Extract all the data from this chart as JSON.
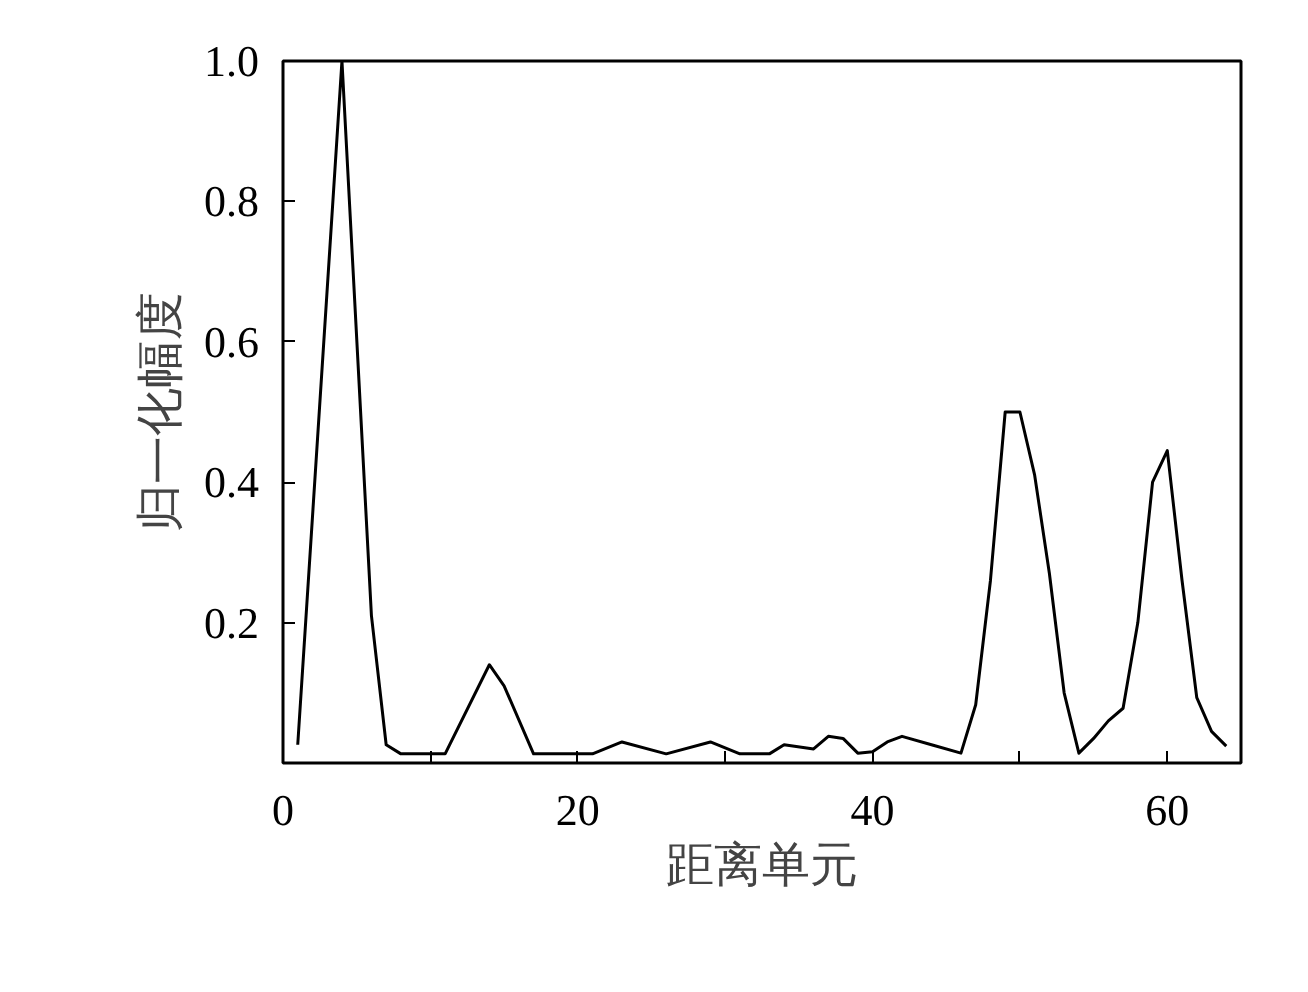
{
  "chart_data": {
    "type": "line",
    "xlabel": "距离单元",
    "ylabel": "归一化幅度",
    "x": [
      1,
      4,
      6,
      7,
      8,
      11,
      14,
      15,
      17,
      21,
      23,
      26,
      29,
      31,
      33,
      34,
      36,
      37,
      38,
      39,
      40,
      41,
      42,
      44,
      46,
      47,
      48,
      49,
      50,
      51,
      52,
      53,
      54,
      55,
      56,
      57,
      58,
      59,
      60,
      61,
      62,
      63,
      64
    ],
    "series": [
      {
        "color": "#000000",
        "values": [
          0.026,
          1.0,
          0.21,
          0.026,
          0.013,
          0.013,
          0.14,
          0.11,
          0.013,
          0.013,
          0.03,
          0.013,
          0.03,
          0.013,
          0.013,
          0.026,
          0.02,
          0.038,
          0.035,
          0.014,
          0.016,
          0.03,
          0.038,
          0.026,
          0.014,
          0.083,
          0.26,
          0.5,
          0.5,
          0.41,
          0.27,
          0.1,
          0.014,
          0.035,
          0.06,
          0.078,
          0.2,
          0.4,
          0.445,
          0.26,
          0.093,
          0.045,
          0.024
        ]
      }
    ],
    "xlim": [
      0,
      65
    ],
    "xticks": [
      0,
      {
        "value": 10,
        "label": null
      },
      20,
      {
        "value": 30,
        "label": null
      },
      40,
      {
        "value": 50,
        "label": null
      },
      60
    ],
    "ylim": [
      0,
      1.0
    ],
    "yticks": [
      0.2,
      0.4,
      0.6,
      0.8,
      {
        "value": 1.0,
        "label": "1.0"
      }
    ],
    "grid": false,
    "marker": "none",
    "line_style": "solid"
  }
}
